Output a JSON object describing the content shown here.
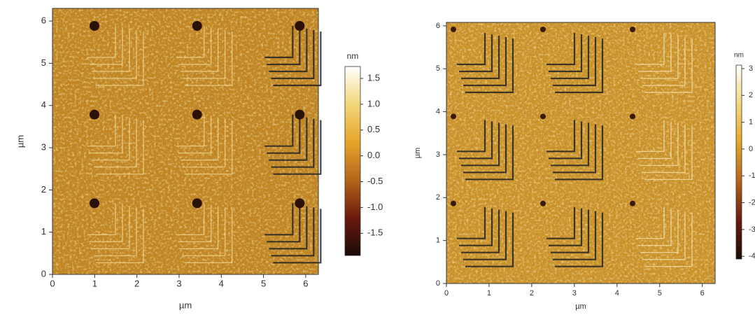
{
  "chart_data": [
    {
      "type": "heatmap",
      "xlabel": "µm",
      "ylabel": "µm",
      "xlim": [
        0,
        6.3
      ],
      "ylim": [
        0,
        6.3
      ],
      "xticks": [
        0,
        1,
        2,
        3,
        4,
        5,
        6
      ],
      "yticks": [
        0,
        1,
        2,
        3,
        4,
        5,
        6
      ],
      "colorbar_label": "nm",
      "clim": [
        -1.93,
        1.73
      ],
      "cticks": [
        {
          "value": 1.5,
          "label": "1.5"
        },
        {
          "value": 1.0,
          "label": "1.0"
        },
        {
          "value": 0.5,
          "label": "0.5"
        },
        {
          "value": 0.0,
          "label": "0.0"
        },
        {
          "value": -0.5,
          "label": "-0.5"
        },
        {
          "value": -1.0,
          "label": "-1.0"
        },
        {
          "value": -1.5,
          "label": "-1.5"
        }
      ],
      "colors": [
        "#1a0a08",
        "#6b1a0e",
        "#b5651a",
        "#e6a52a",
        "#f3d77a",
        "#ffffff"
      ]
    },
    {
      "type": "heatmap",
      "xlabel": "µm",
      "ylabel": "µm",
      "xlim": [
        0,
        6.3
      ],
      "ylim": [
        0,
        6.08
      ],
      "xticks": [
        0,
        1,
        2,
        3,
        4,
        5,
        6
      ],
      "yticks": [
        0,
        1,
        2,
        3,
        4,
        5,
        6
      ],
      "colorbar_label": "nm",
      "clim": [
        -4.1,
        3.13
      ],
      "cticks": [
        3,
        2,
        1,
        0,
        -1,
        -2,
        -3,
        -4
      ],
      "colors": [
        "#1a0a08",
        "#6b1a0e",
        "#b5651a",
        "#e6a52a",
        "#f3d77a",
        "#ffffff"
      ]
    }
  ]
}
